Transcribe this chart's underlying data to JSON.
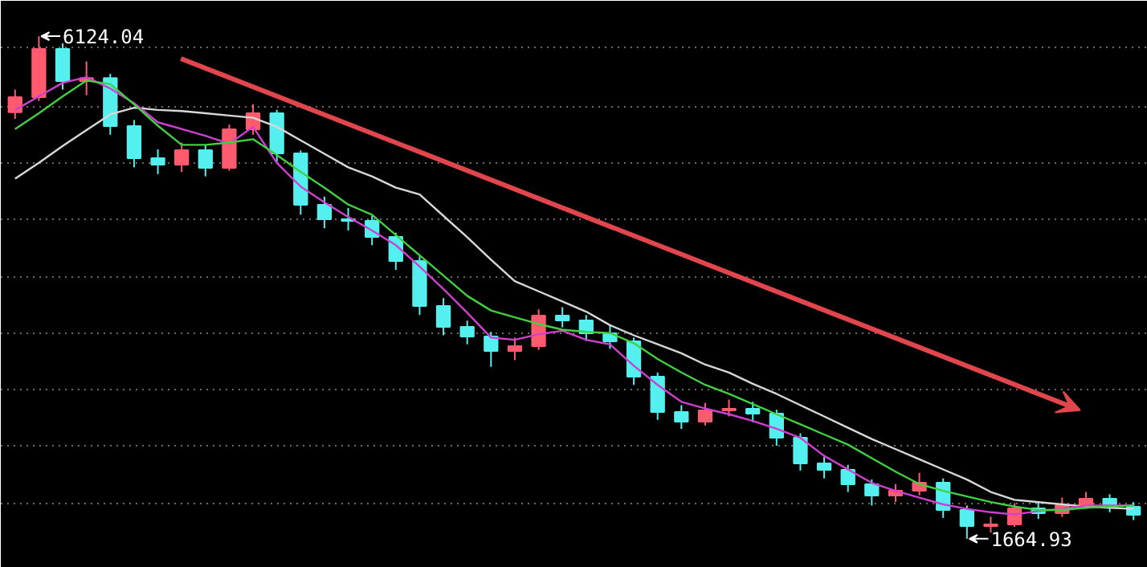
{
  "chart_data": {
    "type": "candlestick",
    "categories": [
      null,
      null,
      null,
      null,
      null,
      null,
      null,
      null,
      null,
      null,
      null,
      null,
      null,
      null,
      null,
      null,
      null,
      null,
      null,
      null,
      null,
      null,
      null,
      null,
      null,
      null,
      null,
      null,
      null,
      null,
      null,
      null,
      null,
      null,
      null,
      null,
      null,
      null,
      null,
      null,
      null,
      null,
      null,
      null,
      null,
      null,
      null,
      null
    ],
    "ohlc": [
      [
        5450,
        5650,
        5390,
        5582
      ],
      [
        5582,
        6124.04,
        5550,
        6010
      ],
      [
        6010,
        6060,
        5650,
        5725
      ],
      [
        5725,
        5900,
        5600,
        5753
      ],
      [
        5753,
        5790,
        5250,
        5326
      ],
      [
        5326,
        5380,
        4960,
        5041
      ],
      [
        5041,
        5120,
        4900,
        4984
      ],
      [
        4984,
        5180,
        4920,
        5112
      ],
      [
        5112,
        5160,
        4880,
        4955
      ],
      [
        4955,
        5340,
        4930,
        5297
      ],
      [
        5297,
        5520,
        5250,
        5440
      ],
      [
        5440,
        5470,
        5010,
        5084
      ],
      [
        5084,
        5110,
        4540,
        4628
      ],
      [
        4628,
        4700,
        4420,
        4499
      ],
      [
        4499,
        4600,
        4400,
        4485
      ],
      [
        4485,
        4530,
        4270,
        4343
      ],
      [
        4343,
        4380,
        4050,
        4129
      ],
      [
        4129,
        4170,
        3650,
        3730
      ],
      [
        3730,
        3800,
        3470,
        3545
      ],
      [
        3545,
        3600,
        3390,
        3459
      ],
      [
        3459,
        3500,
        3190,
        3331
      ],
      [
        3331,
        3450,
        3250,
        3374
      ],
      [
        3374,
        3700,
        3340,
        3644
      ],
      [
        3644,
        3720,
        3540,
        3602
      ],
      [
        3602,
        3650,
        3420,
        3488
      ],
      [
        3488,
        3560,
        3350,
        3416
      ],
      [
        3416,
        3450,
        3030,
        3103
      ],
      [
        3103,
        3140,
        2720,
        2789
      ],
      [
        2789,
        2850,
        2640,
        2704
      ],
      [
        2704,
        2870,
        2670,
        2804
      ],
      [
        2804,
        2900,
        2750,
        2818
      ],
      [
        2818,
        2880,
        2700,
        2775
      ],
      [
        2775,
        2810,
        2490,
        2561
      ],
      [
        2561,
        2600,
        2270,
        2334
      ],
      [
        2334,
        2390,
        2200,
        2276
      ],
      [
        2276,
        2320,
        2080,
        2148
      ],
      [
        2148,
        2190,
        1960,
        2048
      ],
      [
        2048,
        2150,
        1990,
        2091
      ],
      [
        2091,
        2250,
        2050,
        2162
      ],
      [
        2162,
        2200,
        1850,
        1920
      ],
      [
        1920,
        1960,
        1664.93,
        1778
      ],
      [
        1778,
        1860,
        1720,
        1792
      ],
      [
        1792,
        1980,
        1770,
        1934
      ],
      [
        1934,
        1990,
        1840,
        1892
      ],
      [
        1892,
        2030,
        1860,
        1963
      ],
      [
        1963,
        2080,
        1930,
        2020
      ],
      [
        2020,
        2060,
        1900,
        1949
      ],
      [
        1949,
        1990,
        1830,
        1877
      ]
    ],
    "series": [
      {
        "type": "line",
        "color": "#d8d8d8",
        "values": [
          4860,
          5000,
          5150,
          5290,
          5430,
          5490,
          5470,
          5460,
          5440,
          5420,
          5400,
          5320,
          5200,
          5080,
          4960,
          4880,
          4780,
          4720,
          4530,
          4340,
          4140,
          3950,
          3860,
          3770,
          3680,
          3560,
          3470,
          3390,
          3310,
          3210,
          3140,
          3040,
          2950,
          2850,
          2750,
          2650,
          2550,
          2460,
          2370,
          2280,
          2190,
          2080,
          2010,
          1990,
          1970,
          1950,
          1940,
          1930
        ]
      },
      {
        "type": "line",
        "color": "#d040d0",
        "values": [
          5470,
          5590,
          5710,
          5760,
          5660,
          5530,
          5360,
          5300,
          5240,
          5170,
          5320,
          5000,
          4790,
          4650,
          4520,
          4400,
          4270,
          4080,
          3880,
          3670,
          3450,
          3430,
          3480,
          3510,
          3430,
          3390,
          3200,
          3030,
          2880,
          2820,
          2770,
          2710,
          2640,
          2560,
          2400,
          2280,
          2160,
          2090,
          2030,
          1970,
          1930,
          1900,
          1880,
          1910,
          1930,
          1960,
          1960,
          1960
        ]
      },
      {
        "type": "line",
        "color": "#40d040",
        "values": [
          5300,
          5440,
          5590,
          5730,
          5700,
          5520,
          5330,
          5160,
          5160,
          5180,
          5210,
          5070,
          4920,
          4780,
          4630,
          4540,
          4360,
          4180,
          4000,
          3820,
          3690,
          3630,
          3570,
          3520,
          3500,
          3490,
          3400,
          3260,
          3140,
          3030,
          2950,
          2860,
          2770,
          2680,
          2590,
          2500,
          2380,
          2260,
          2150,
          2090,
          2040,
          1990,
          1950,
          1920,
          1920,
          1940,
          1950,
          1960
        ]
      }
    ],
    "annotations": [
      "6124.04",
      "1664.93"
    ],
    "ylim": [
      1407,
      6438
    ],
    "yticks": [
      {
        "value": 1977,
        "label": null
      },
      {
        "value": 2490,
        "label": null
      },
      {
        "value": 2989,
        "label": null
      },
      {
        "value": 3488,
        "label": null
      },
      {
        "value": 3987,
        "label": null
      },
      {
        "value": 4499,
        "label": null
      },
      {
        "value": 4998,
        "label": null
      },
      {
        "value": 5497,
        "label": null
      },
      {
        "value": 6024,
        "label": null
      }
    ],
    "grid": "y",
    "tick_labels": false
  }
}
